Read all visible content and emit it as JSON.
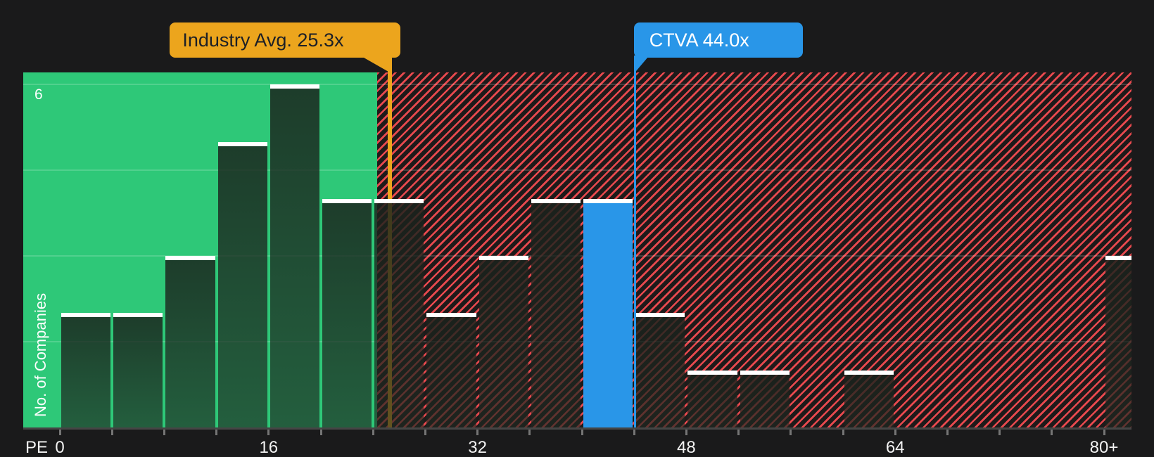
{
  "chart_data": {
    "type": "bar",
    "subtype": "histogram",
    "xlabel": "PE",
    "ylabel": "No. of Companies",
    "bin_width_pe": 4,
    "bins": [
      {
        "start": 0,
        "count": 2
      },
      {
        "start": 4,
        "count": 2
      },
      {
        "start": 8,
        "count": 3
      },
      {
        "start": 12,
        "count": 5
      },
      {
        "start": 16,
        "count": 6
      },
      {
        "start": 20,
        "count": 4
      },
      {
        "start": 24,
        "count": 4
      },
      {
        "start": 28,
        "count": 2
      },
      {
        "start": 32,
        "count": 3
      },
      {
        "start": 36,
        "count": 4
      },
      {
        "start": 40,
        "count": 4,
        "highlight": true
      },
      {
        "start": 44,
        "count": 2
      },
      {
        "start": 48,
        "count": 1
      },
      {
        "start": 52,
        "count": 1
      },
      {
        "start": 56,
        "count": 0
      },
      {
        "start": 60,
        "count": 1
      },
      {
        "start": 64,
        "count": 0
      },
      {
        "start": 68,
        "count": 0
      },
      {
        "start": 72,
        "count": 0
      },
      {
        "start": 76,
        "count": 0
      },
      {
        "start": 80,
        "count": 3
      }
    ],
    "x_ticks_every": 4,
    "x_tick_max": 80,
    "x_tick_labels": [
      {
        "pe": 0,
        "label": "0"
      },
      {
        "pe": 16,
        "label": "16"
      },
      {
        "pe": 32,
        "label": "32"
      },
      {
        "pe": 48,
        "label": "48"
      },
      {
        "pe": 64,
        "label": "64"
      },
      {
        "pe": 80,
        "label": "80+"
      }
    ],
    "y_gridlines": [
      1.5,
      3,
      4.5,
      6
    ],
    "y_tick_label": {
      "value": 6,
      "label": "6"
    },
    "ylim": [
      0,
      6.2
    ],
    "grid": true,
    "legend": "none",
    "annotations": {
      "industry_avg": {
        "label": "Industry Avg. 25.3x",
        "value": 25.3
      },
      "ctva": {
        "label": "CTVA 44.0x",
        "value": 44.0
      }
    },
    "regions": {
      "below_avg_green_from_pe": -2.8,
      "boundary_pe": 24.31,
      "above_avg_hatch_to_pe": 82.1
    }
  },
  "colors": {
    "background": "#1a1a1b",
    "below_avg_region_green": "#2ec878",
    "hatch_stripe_red": "#e8494e",
    "hatch_background": "#1e1a1a",
    "highlight_bar_blue": "#2996e8",
    "industry_avg_orange": "#eca51d",
    "bar_cap_white": "#ffffff",
    "callout_text_dark": "#1d2026",
    "callout_text_light": "#ffffff",
    "axis_text": "#f2f2f2"
  }
}
